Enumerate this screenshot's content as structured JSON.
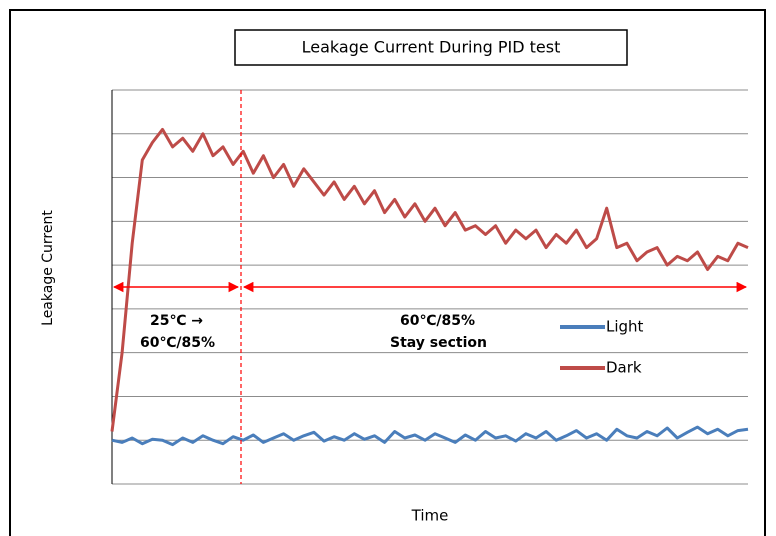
{
  "chart_data": {
    "type": "line",
    "title": "Leakage Current During PID test",
    "x_label": "Time",
    "y_label": "Leakage Current",
    "annotations": [
      [
        "25℃ →",
        "60℃/85%"
      ],
      [
        "60℃/85%",
        "Stay section"
      ]
    ],
    "xlim": [
      0,
      63
    ],
    "ylim": [
      0,
      9
    ],
    "yticks": [
      0,
      1,
      2,
      3,
      4,
      5,
      6,
      7,
      8,
      9
    ],
    "grid": true,
    "legend": "right",
    "series": [
      {
        "name": "Light",
        "color": "#4a7ebb",
        "values": [
          1.0,
          0.95,
          1.05,
          0.92,
          1.02,
          1.0,
          0.9,
          1.05,
          0.95,
          1.1,
          1.0,
          0.92,
          1.08,
          1.0,
          1.12,
          0.95,
          1.05,
          1.15,
          1.0,
          1.1,
          1.18,
          0.98,
          1.08,
          1.0,
          1.15,
          1.02,
          1.1,
          0.95,
          1.2,
          1.05,
          1.12,
          1.0,
          1.15,
          1.05,
          0.95,
          1.12,
          1.0,
          1.2,
          1.05,
          1.1,
          0.98,
          1.15,
          1.05,
          1.2,
          1.0,
          1.1,
          1.22,
          1.05,
          1.15,
          1.0,
          1.25,
          1.1,
          1.05,
          1.2,
          1.1,
          1.28,
          1.05,
          1.18,
          1.3,
          1.15,
          1.25,
          1.1,
          1.22,
          1.25
        ]
      },
      {
        "name": "Dark",
        "color": "#be4b48",
        "values": [
          1.2,
          3.0,
          5.5,
          7.4,
          7.8,
          8.1,
          7.7,
          7.9,
          7.6,
          8.0,
          7.5,
          7.7,
          7.3,
          7.6,
          7.1,
          7.5,
          7.0,
          7.3,
          6.8,
          7.2,
          6.9,
          6.6,
          6.9,
          6.5,
          6.8,
          6.4,
          6.7,
          6.2,
          6.5,
          6.1,
          6.4,
          6.0,
          6.3,
          5.9,
          6.2,
          5.8,
          5.9,
          5.7,
          5.9,
          5.5,
          5.8,
          5.6,
          5.8,
          5.4,
          5.7,
          5.5,
          5.8,
          5.4,
          5.6,
          6.3,
          5.4,
          5.5,
          5.1,
          5.3,
          5.4,
          5.0,
          5.2,
          5.1,
          5.3,
          4.9,
          5.2,
          5.1,
          5.5,
          5.4
        ]
      }
    ]
  }
}
